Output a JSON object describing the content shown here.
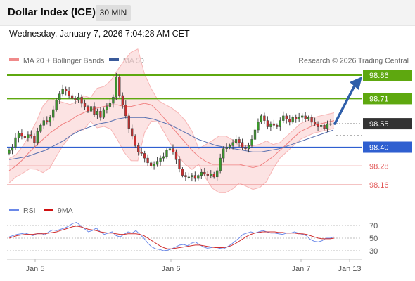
{
  "header": {
    "title": "Dollar Index (ICE)",
    "timeframe": "30 MIN",
    "datetime": "Wednesday, January 7, 2026 7:04:28 AM CET"
  },
  "legend": {
    "ma20_bb": "MA 20 + Bollinger Bands",
    "ma50": "MA 50",
    "credit": "Research © 2026 Trading Central",
    "rsi": "RSI",
    "rsi_ma": "9MA"
  },
  "colors": {
    "up_candle": "#3a9a2a",
    "down_candle": "#cc2e2e",
    "target_green": "#5ea80f",
    "current_dark": "#333333",
    "pivot_blue": "#2f5fd0",
    "support_red": "#e25555",
    "bollinger_fill": "#fbd9d9",
    "ma50_line": "#5870b0",
    "rsi_line": "#6a88e8",
    "rsi_ma_line": "#d03030",
    "arrow": "#2f5faa"
  },
  "chart_data": [
    {
      "type": "candlestick",
      "x_ticks": [
        "Jan 5",
        "Jan 6",
        "Jan 7",
        "Jan 13"
      ],
      "levels": [
        {
          "value": 98.86,
          "label": "98.86",
          "kind": "target"
        },
        {
          "value": 98.71,
          "label": "98.71",
          "kind": "target"
        },
        {
          "value": 98.55,
          "label": "98.55",
          "kind": "current"
        },
        {
          "value": 98.4,
          "label": "98.40",
          "kind": "pivot"
        },
        {
          "value": 98.28,
          "label": "98.28",
          "kind": "support"
        },
        {
          "value": 98.16,
          "label": "98.16",
          "kind": "support"
        }
      ],
      "close": [
        98.38,
        98.4,
        98.46,
        98.49,
        98.47,
        98.46,
        98.48,
        98.47,
        98.43,
        98.5,
        98.54,
        98.57,
        98.56,
        98.59,
        98.64,
        98.7,
        98.74,
        98.77,
        98.76,
        98.73,
        98.71,
        98.7,
        98.72,
        98.68,
        98.66,
        98.63,
        98.66,
        98.61,
        98.63,
        98.59,
        98.64,
        98.66,
        98.68,
        98.72,
        98.85,
        98.73,
        98.67,
        98.6,
        98.52,
        98.47,
        98.41,
        98.37,
        98.36,
        98.33,
        98.3,
        98.28,
        98.29,
        98.31,
        98.33,
        98.34,
        98.38,
        98.39,
        98.37,
        98.32,
        98.26,
        98.22,
        98.21,
        98.21,
        98.22,
        98.2,
        98.22,
        98.24,
        98.23,
        98.22,
        98.23,
        98.21,
        98.25,
        98.33,
        98.39,
        98.4,
        98.41,
        98.43,
        98.45,
        98.43,
        98.4,
        98.39,
        98.41,
        98.45,
        98.51,
        98.56,
        98.6,
        98.57,
        98.53,
        98.55,
        98.54,
        98.53,
        98.57,
        98.6,
        98.58,
        98.56,
        98.59,
        98.58,
        98.59,
        98.6,
        98.58,
        98.59,
        98.56,
        98.55,
        98.53,
        98.54,
        98.52,
        98.55,
        98.55
      ],
      "ma20": [
        98.25,
        98.28,
        98.32,
        98.37,
        98.41,
        98.45,
        98.49,
        98.52,
        98.55,
        98.57,
        98.6,
        98.62,
        98.64,
        98.65,
        98.66,
        98.67,
        98.67,
        98.66,
        98.66,
        98.67,
        98.68,
        98.67,
        98.63,
        98.58,
        98.53,
        98.48,
        98.43,
        98.38,
        98.34,
        98.31,
        98.29,
        98.29,
        98.29,
        98.29,
        98.29,
        98.28,
        98.27,
        98.28,
        98.31,
        98.34,
        98.38,
        98.42,
        98.46,
        98.5,
        98.52,
        98.54,
        98.55,
        98.56,
        98.57
      ],
      "ma50": [
        98.32,
        98.33,
        98.34,
        98.36,
        98.38,
        98.41,
        98.44,
        98.48,
        98.51,
        98.53,
        98.55,
        98.56,
        98.58,
        98.59,
        98.59,
        98.59,
        98.58,
        98.56,
        98.54,
        98.51,
        98.48,
        98.45,
        98.43,
        98.41,
        98.4,
        98.39,
        98.38,
        98.37,
        98.37,
        98.38,
        98.39,
        98.41,
        98.43,
        98.45,
        98.47,
        98.49,
        98.51
      ]
    },
    {
      "type": "line",
      "name": "RSI",
      "y_ticks": [
        70,
        50,
        30
      ],
      "ylim": [
        20,
        80
      ],
      "series": [
        {
          "name": "RSI",
          "values": [
            52,
            54,
            56,
            57,
            58,
            56,
            54,
            57,
            58,
            55,
            60,
            63,
            62,
            64,
            66,
            69,
            73,
            75,
            70,
            65,
            60,
            62,
            66,
            60,
            56,
            58,
            60,
            54,
            52,
            56,
            60,
            58,
            62,
            56,
            50,
            42,
            36,
            33,
            32,
            30,
            31,
            33,
            36,
            39,
            40,
            38,
            42,
            44,
            40,
            36,
            34,
            35,
            36,
            34,
            33,
            36,
            40,
            45,
            50,
            56,
            58,
            60,
            58,
            60,
            62,
            60,
            58,
            58,
            57,
            56,
            58,
            58,
            60,
            58,
            56,
            54,
            48,
            45,
            44,
            46,
            50,
            50,
            52
          ]
        },
        {
          "name": "9MA",
          "values": [
            50,
            52,
            54,
            55,
            56,
            56,
            56,
            57,
            57,
            57,
            58,
            59,
            60,
            62,
            64,
            66,
            68,
            69,
            68,
            66,
            64,
            63,
            62,
            60,
            59,
            58,
            58,
            57,
            56,
            56,
            57,
            57,
            57,
            56,
            54,
            50,
            46,
            42,
            38,
            35,
            33,
            33,
            34,
            35,
            36,
            37,
            38,
            39,
            39,
            38,
            37,
            36,
            35,
            35,
            35,
            36,
            38,
            41,
            45,
            49,
            53,
            56,
            58,
            59,
            60,
            60,
            60,
            60,
            59,
            59,
            58,
            58,
            58,
            57,
            57,
            56,
            54,
            52,
            50,
            49,
            49,
            49,
            50
          ]
        }
      ]
    }
  ]
}
